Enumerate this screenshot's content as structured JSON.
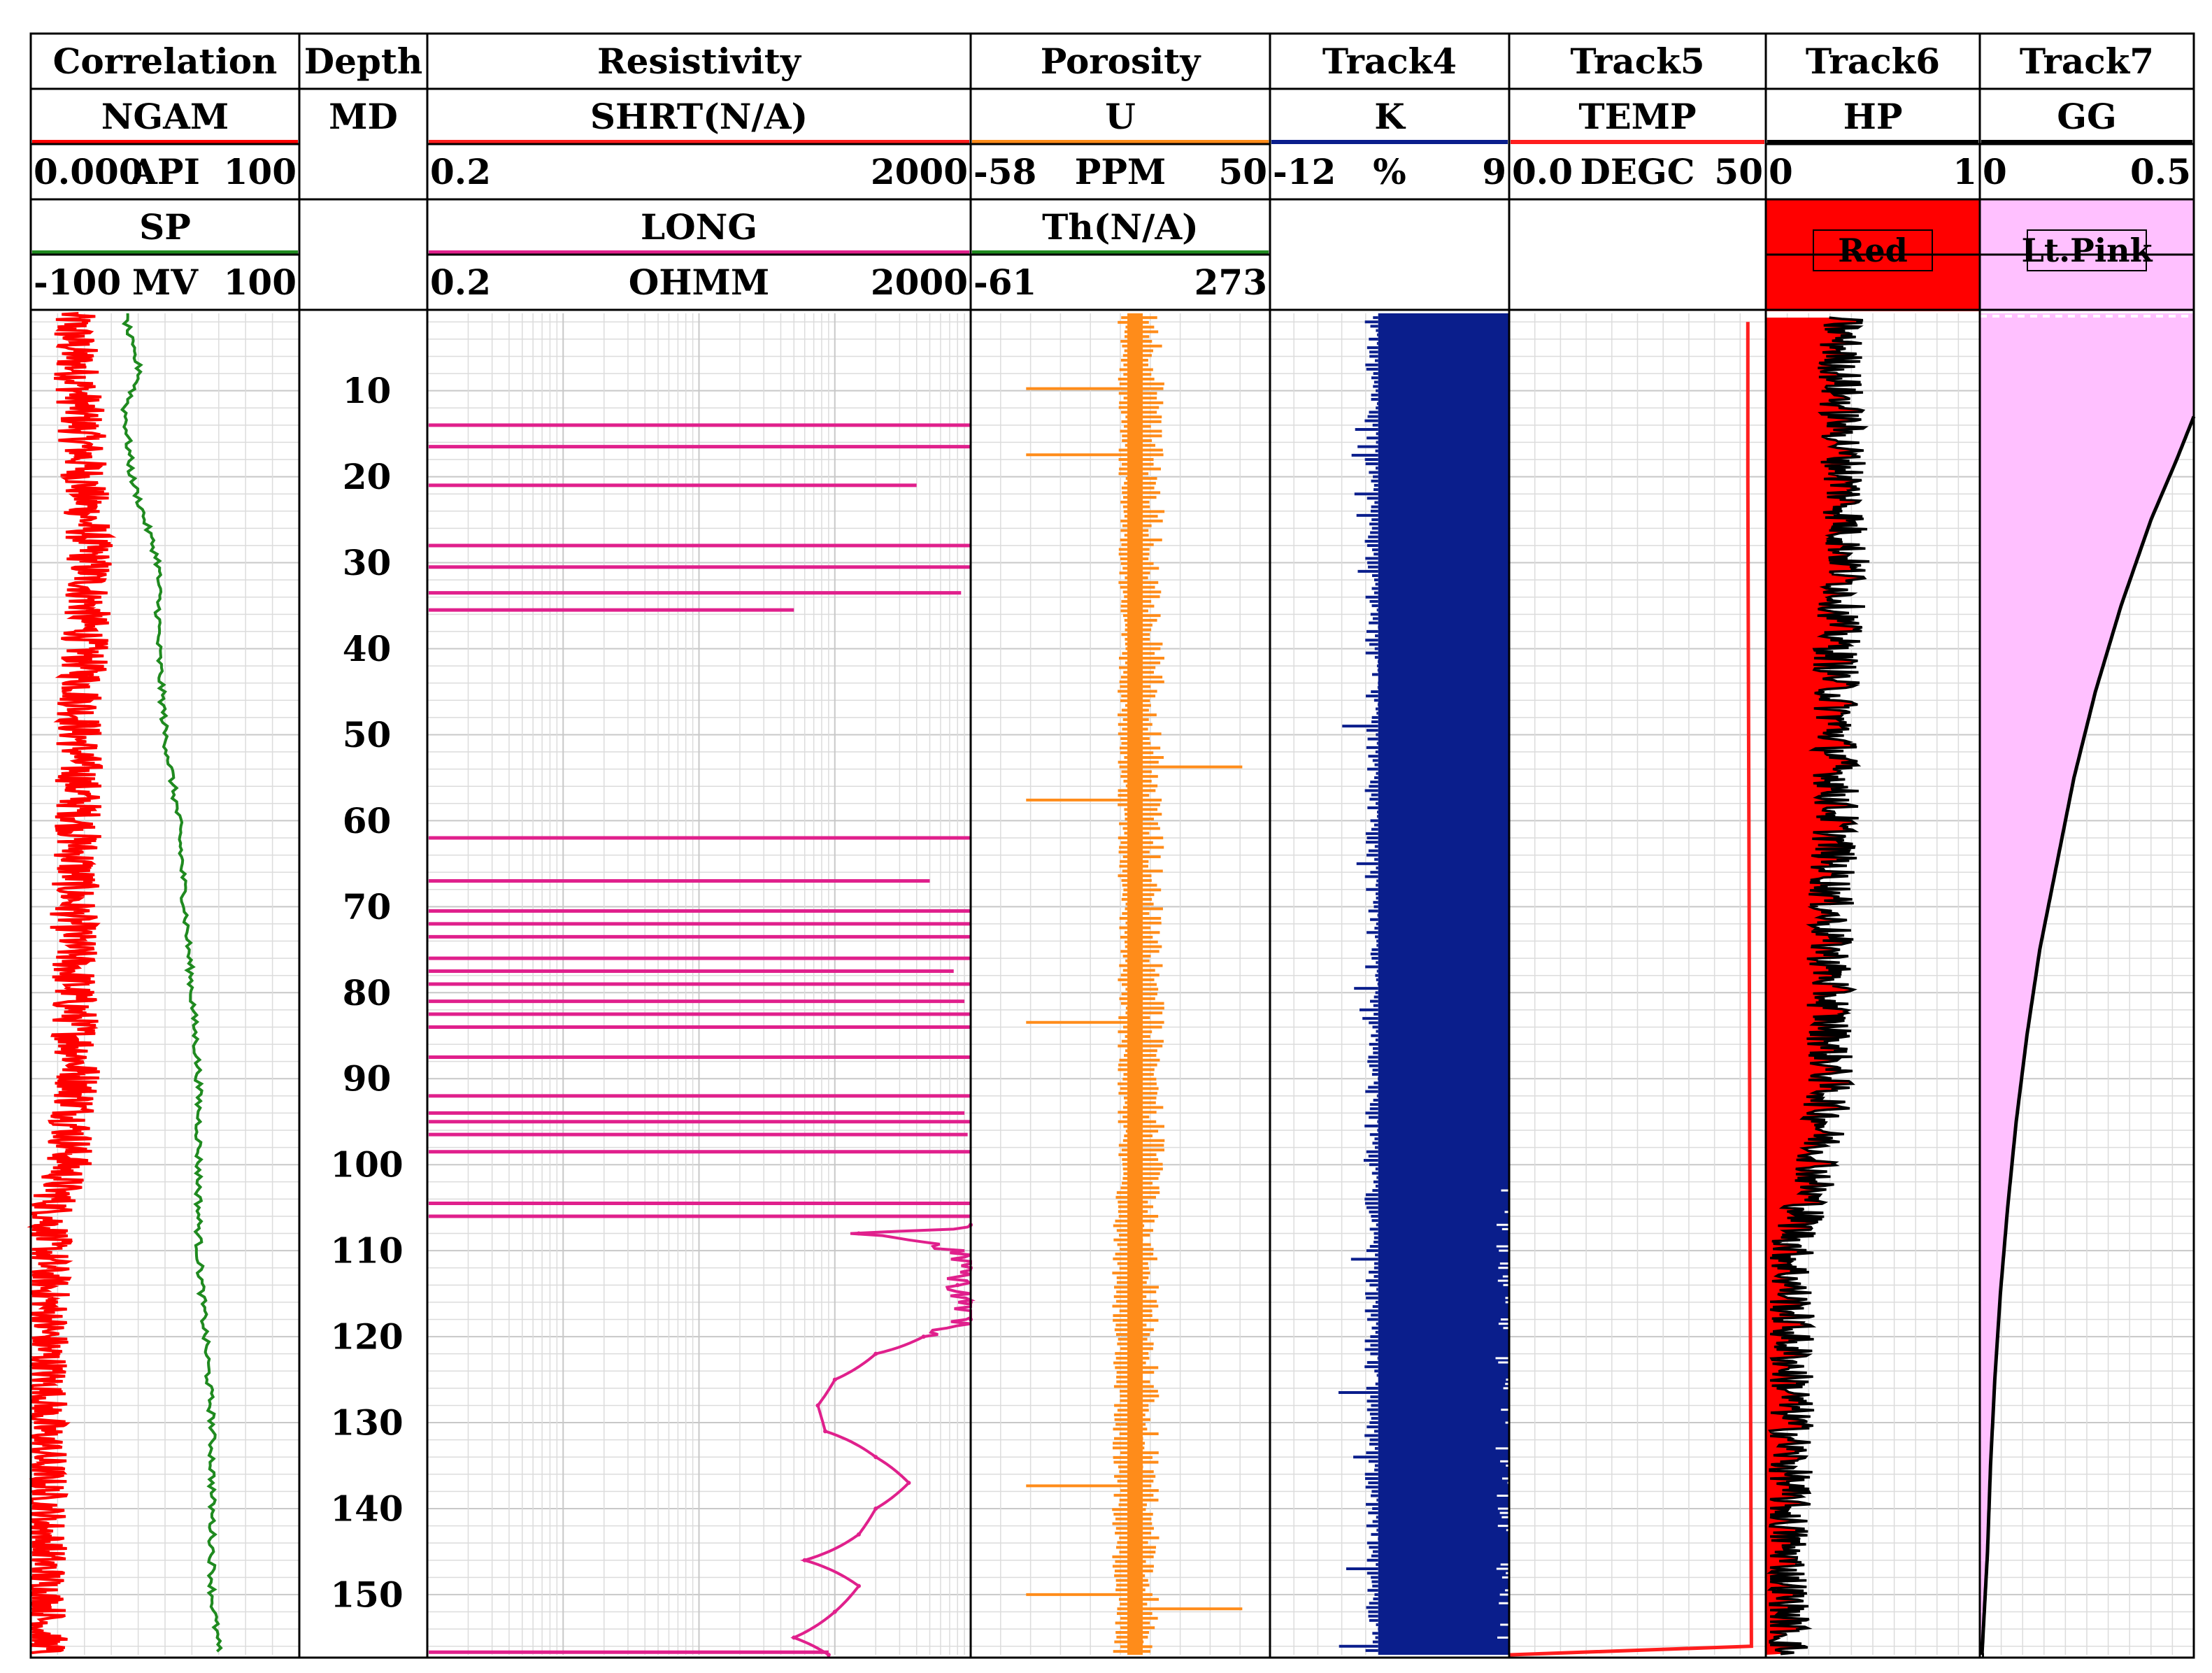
{
  "tracks": [
    {
      "title": "Correlation",
      "rows": [
        {
          "name": "NGAM",
          "color": "#ff0000",
          "min": "0.000",
          "unit": "API",
          "max": "100"
        },
        {
          "name": "SP",
          "color": "#1f8a1f",
          "min": "-100",
          "unit": "MV",
          "max": "100"
        }
      ]
    },
    {
      "title": "Depth",
      "rows": [
        {
          "name": "MD",
          "color": "",
          "min": "",
          "unit": "",
          "max": ""
        }
      ]
    },
    {
      "title": "Resistivity",
      "rows": [
        {
          "name": "SHRT(N/A)",
          "color": "#ff1e1e",
          "min": "0.2",
          "unit": "",
          "max": "2000"
        },
        {
          "name": "LONG",
          "color": "#e0208c",
          "min": "0.2",
          "unit": "OHMM",
          "max": "2000"
        }
      ]
    },
    {
      "title": "Porosity",
      "rows": [
        {
          "name": "U",
          "color": "#ff8c1a",
          "min": "-58",
          "unit": "PPM",
          "max": "50"
        },
        {
          "name": "Th(N/A)",
          "color": "#1f8a1f",
          "min": "-61",
          "unit": "",
          "max": "273"
        }
      ]
    },
    {
      "title": "Track4",
      "rows": [
        {
          "name": "K",
          "color": "#0a1e8c",
          "min": "-12",
          "unit": "%",
          "max": "9"
        }
      ]
    },
    {
      "title": "Track5",
      "rows": [
        {
          "name": "TEMP",
          "color": "#ff1e1e",
          "min": "0.0",
          "unit": "DEGC",
          "max": "50"
        }
      ]
    },
    {
      "title": "Track6",
      "rows": [
        {
          "name": "HP",
          "color": "#000000",
          "min": "0",
          "unit": "",
          "max": "1"
        }
      ],
      "fill_label": "Red",
      "fill_color": "#ff0000"
    },
    {
      "title": "Track7",
      "rows": [
        {
          "name": "GG",
          "color": "#000000",
          "min": "0",
          "unit": "",
          "max": "0.5"
        }
      ],
      "fill_label": "Lt.Pink",
      "fill_color": "#ffc0ff"
    }
  ],
  "chart_data": {
    "type": "line",
    "depth_axis": {
      "label": "MD",
      "range": [
        1,
        157
      ],
      "ticks": [
        10,
        20,
        30,
        40,
        50,
        60,
        70,
        80,
        90,
        100,
        110,
        120,
        130,
        140,
        150
      ]
    },
    "grid": true,
    "series": [
      {
        "name": "NGAM",
        "unit": "API",
        "range": [
          0,
          100
        ],
        "color": "#ff0000",
        "depth": [
          1,
          10,
          20,
          30,
          40,
          50,
          60,
          70,
          80,
          90,
          100,
          105,
          110,
          120,
          130,
          140,
          150,
          157
        ],
        "values": [
          15,
          18,
          20,
          22,
          20,
          18,
          18,
          16,
          16,
          18,
          14,
          8,
          6,
          6,
          5,
          5,
          5,
          5
        ]
      },
      {
        "name": "SP",
        "unit": "MV",
        "range": [
          -100,
          100
        ],
        "color": "#1f8a1f",
        "depth": [
          1,
          5,
          8,
          12,
          20,
          30,
          40,
          50,
          60,
          70,
          80,
          90,
          100,
          110,
          120,
          130,
          140,
          150,
          157
        ],
        "values": [
          -30,
          -25,
          -18,
          -30,
          -25,
          -5,
          -5,
          0,
          10,
          15,
          20,
          25,
          25,
          25,
          30,
          35,
          35,
          35,
          40
        ]
      },
      {
        "name": "SHRT(N/A)",
        "unit": "OHMM",
        "range": [
          0.2,
          2000
        ],
        "scale": "log",
        "color": "#ff1e1e",
        "depth": [],
        "values": []
      },
      {
        "name": "LONG",
        "unit": "OHMM",
        "range": [
          0.2,
          2000
        ],
        "scale": "log",
        "color": "#e0208c",
        "depth": [
          14,
          16.5,
          21,
          28,
          30.5,
          33.5,
          35.5,
          62,
          67,
          70.5,
          72,
          73.5,
          76,
          77.5,
          79,
          81,
          82.5,
          84,
          87.5,
          92,
          94,
          95,
          96.5,
          98.5,
          104.5,
          106,
          107,
          108,
          110,
          112,
          114,
          116,
          118,
          120,
          122,
          125,
          128,
          131,
          134,
          137,
          140,
          143,
          146,
          149,
          152,
          155,
          157
        ],
        "values": [
          2000,
          2000,
          800,
          2000,
          2000,
          1700,
          100,
          2000,
          1000,
          2000,
          2000,
          2000,
          2000,
          1500,
          2000,
          1800,
          2000,
          2000,
          2000,
          2000,
          1800,
          2000,
          1900,
          2000,
          2000,
          2000,
          2000,
          300,
          1500,
          2000,
          1600,
          2000,
          2000,
          900,
          400,
          200,
          150,
          170,
          400,
          700,
          400,
          300,
          120,
          300,
          200,
          100,
          180
        ]
      },
      {
        "name": "U",
        "unit": "PPM",
        "range": [
          -58,
          50
        ],
        "color": "#ff8c1a",
        "depth": [
          1,
          10,
          20,
          30,
          40,
          50,
          60,
          70,
          80,
          90,
          100,
          104,
          110,
          120,
          130,
          140,
          150,
          157
        ],
        "values": [
          6,
          6,
          6,
          6,
          6,
          6,
          6,
          6,
          6,
          6,
          6,
          4,
          4,
          4,
          4,
          4,
          4,
          4
        ]
      },
      {
        "name": "Th(N/A)",
        "unit": "",
        "range": [
          -61,
          273
        ],
        "color": "#1f8a1f",
        "depth": [],
        "values": []
      },
      {
        "name": "K",
        "unit": "%",
        "range": [
          -12,
          9
        ],
        "color": "#0a1e8c",
        "depth": [
          1,
          20,
          40,
          60,
          80,
          100,
          110,
          120,
          140,
          157
        ],
        "values": [
          -2,
          -2,
          -2,
          -2,
          -2,
          -2,
          -1.5,
          -1.5,
          -1.5,
          -1.5
        ]
      },
      {
        "name": "TEMP",
        "unit": "DEGC",
        "range": [
          0,
          50
        ],
        "color": "#ff1e1e",
        "depth": [
          2,
          20,
          40,
          60,
          80,
          100,
          120,
          140,
          156,
          157
        ],
        "values": [
          46.5,
          46.5,
          46.6,
          46.7,
          46.8,
          46.9,
          47,
          47.1,
          47.2,
          0
        ]
      },
      {
        "name": "HP",
        "unit": "",
        "range": [
          0,
          1
        ],
        "color": "#000000",
        "depth": [
          1,
          10,
          20,
          30,
          40,
          50,
          60,
          70,
          80,
          90,
          100,
          104,
          110,
          120,
          130,
          140,
          150,
          157
        ],
        "values": [
          0.35,
          0.35,
          0.37,
          0.38,
          0.33,
          0.33,
          0.33,
          0.3,
          0.3,
          0.3,
          0.25,
          0.2,
          0.12,
          0.12,
          0.12,
          0.1,
          0.1,
          0.1
        ]
      },
      {
        "name": "GG",
        "unit": "",
        "range": [
          0,
          0.5
        ],
        "color": "#000000",
        "depth": [
          13,
          18,
          25,
          35,
          45,
          55,
          65,
          75,
          85,
          95,
          105,
          115,
          125,
          135,
          145,
          157
        ],
        "values": [
          0.5,
          0.46,
          0.4,
          0.33,
          0.27,
          0.22,
          0.18,
          0.14,
          0.11,
          0.085,
          0.065,
          0.048,
          0.035,
          0.025,
          0.018,
          0.005
        ]
      }
    ]
  }
}
